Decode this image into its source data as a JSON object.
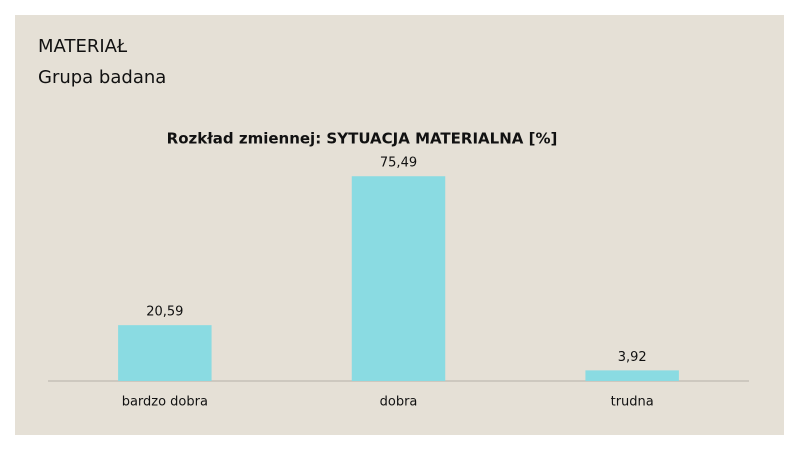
{
  "header": {
    "title": "MATERIAŁ",
    "subtitle": "Grupa badana"
  },
  "chart_data": {
    "type": "bar",
    "title": "Rozkład zmiennej: SYTUACJA MATERIALNA [%]",
    "categories": [
      "bardzo dobra",
      "dobra",
      "trudna"
    ],
    "values": [
      20.59,
      75.49,
      3.92
    ],
    "value_labels": [
      "20,59",
      "75,49",
      "3,92"
    ],
    "color": "#8adbe2",
    "ylim": [
      0,
      80
    ]
  }
}
